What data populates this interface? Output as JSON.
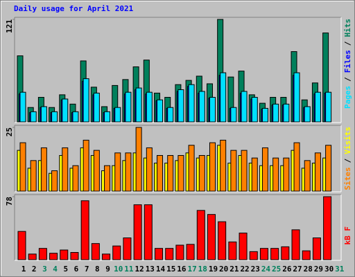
{
  "chart_data": {
    "type": "bar",
    "title": "Daily usage for April 2021",
    "categories": [
      "1",
      "2",
      "3",
      "4",
      "5",
      "6",
      "7",
      "8",
      "9",
      "10",
      "11",
      "12",
      "13",
      "14",
      "15",
      "16",
      "17",
      "18",
      "19",
      "20",
      "21",
      "22",
      "23",
      "24",
      "25",
      "26",
      "27",
      "28",
      "29",
      "30",
      "31"
    ],
    "category_colors": [
      "#000000",
      "#000000",
      "#00805c",
      "#00805c",
      "#000000",
      "#000000",
      "#000000",
      "#000000",
      "#000000",
      "#00805c",
      "#00805c",
      "#000000",
      "#000000",
      "#000000",
      "#000000",
      "#000000",
      "#00805c",
      "#00805c",
      "#000000",
      "#000000",
      "#000000",
      "#000000",
      "#000000",
      "#00805c",
      "#00805c",
      "#000000",
      "#000000",
      "#000000",
      "#000000",
      "#000000",
      "#00805c"
    ],
    "legend_separator": "/",
    "panels": [
      {
        "ylim": [
          0,
          121
        ],
        "yticks": [
          121
        ],
        "series": [
          {
            "name": "Hits",
            "color": "#00805c",
            "values": [
              78,
              17,
              29,
              17,
              32,
              21,
              72,
              41,
              18,
              43,
              50,
              65,
              73,
              34,
              29,
              44,
              49,
              54,
              45,
              121,
              53,
              60,
              32,
              22,
              29,
              29,
              83,
              26,
              46,
              105,
              null
            ]
          },
          {
            "name": "Files",
            "color": "#0000ff",
            "values": [
              33,
              11,
              17,
              11,
              26,
              11,
              48,
              32,
              11,
              16,
              33,
              38,
              33,
              25,
              16,
              36,
              42,
              34,
              28,
              55,
              16,
              34,
              27,
              15,
              20,
              20,
              55,
              17,
              33,
              34,
              null
            ]
          },
          {
            "name": "Pages",
            "color": "#00e0ff",
            "values": [
              35,
              12,
              18,
              12,
              27,
              12,
              51,
              34,
              12,
              17,
              35,
              40,
              35,
              26,
              17,
              38,
              44,
              36,
              29,
              58,
              17,
              36,
              29,
              16,
              21,
              21,
              58,
              18,
              35,
              35,
              null
            ]
          }
        ]
      },
      {
        "ylim": [
          0,
          25
        ],
        "yticks": [
          25
        ],
        "series": [
          {
            "name": "Visits",
            "color": "#ffff00",
            "values": [
              16,
              9,
              12,
              7,
              14,
              9,
              17,
              14,
              8,
              10,
              12,
              15,
              13,
              11,
              11,
              12,
              15,
              13,
              14,
              18,
              11,
              14,
              11,
              10,
              10,
              10,
              16,
              9,
              11,
              13,
              null
            ]
          },
          {
            "name": "Sites",
            "color": "#ff8000",
            "values": [
              19,
              12,
              17,
              8,
              17,
              10,
              20,
              16,
              10,
              15,
              15,
              25,
              17,
              14,
              14,
              14,
              18,
              14,
              19,
              20,
              16,
              16,
              13,
              17,
              13,
              13,
              19,
              12,
              15,
              18,
              null
            ]
          }
        ]
      },
      {
        "ylim": [
          0,
          78
        ],
        "yticks": [
          78
        ],
        "series": [
          {
            "name": "kB F",
            "color": "#ff0000",
            "values": [
              35,
              7,
              14,
              8,
              12,
              9,
              73,
              20,
              7,
              17,
              27,
              68,
              68,
              14,
              14,
              18,
              19,
              61,
              56,
              47,
              22,
              33,
              10,
              14,
              14,
              16,
              37,
              11,
              27,
              78,
              null
            ]
          }
        ]
      }
    ]
  }
}
